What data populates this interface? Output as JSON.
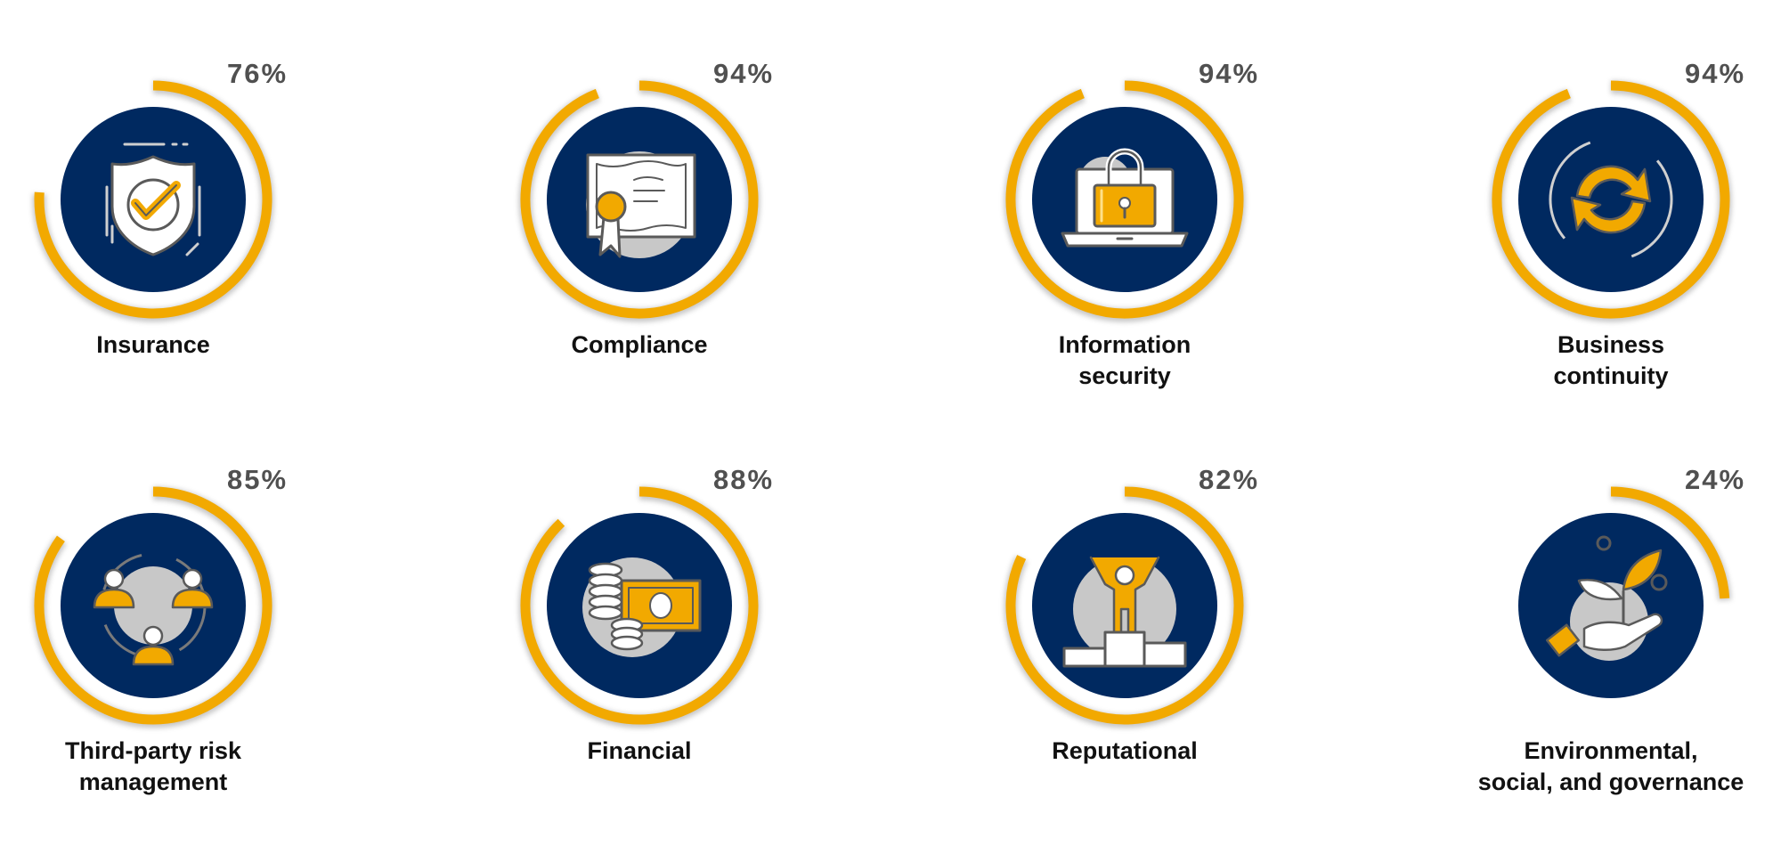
{
  "colors": {
    "ring": "#F2A900",
    "navy": "#002960",
    "gray": "#C8C8C8",
    "stroke": "#5A5A5A"
  },
  "chart_data": {
    "type": "radial-progress",
    "unit": "%",
    "items": [
      {
        "label": [
          "Insurance"
        ],
        "value": 76,
        "display": "76%",
        "icon": "shield-check-icon"
      },
      {
        "label": [
          "Compliance"
        ],
        "value": 94,
        "display": "94%",
        "icon": "certificate-icon"
      },
      {
        "label": [
          "Information",
          "security"
        ],
        "value": 94,
        "display": "94%",
        "icon": "laptop-lock-icon"
      },
      {
        "label": [
          "Business",
          "continuity"
        ],
        "value": 94,
        "display": "94%",
        "icon": "refresh-arrows-icon"
      },
      {
        "label": [
          "Third-party risk",
          "management"
        ],
        "value": 85,
        "display": "85%",
        "icon": "people-network-icon"
      },
      {
        "label": [
          "Financial"
        ],
        "value": 88,
        "display": "88%",
        "icon": "money-coins-icon"
      },
      {
        "label": [
          "Reputational"
        ],
        "value": 82,
        "display": "82%",
        "icon": "podium-person-icon"
      },
      {
        "label": [
          "Environmental,",
          "social, and governance"
        ],
        "value": 24,
        "display": "24%",
        "icon": "plant-hand-icon"
      }
    ]
  }
}
